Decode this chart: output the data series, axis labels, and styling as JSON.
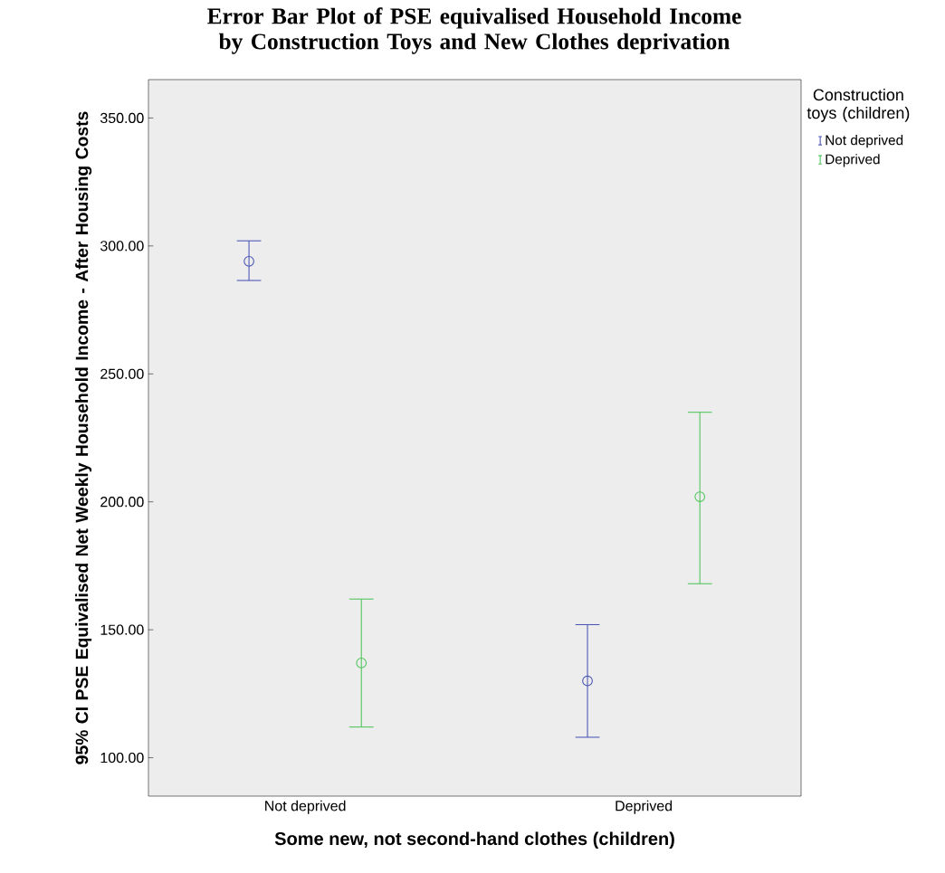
{
  "chart_data": {
    "type": "scatter",
    "title": "Error Bar Plot of PSE equivalised Household Income by Construction Toys and New Clothes deprivation",
    "xlabel": "Some new, not second-hand clothes (children)",
    "ylabel": "95% CI PSE Equivalised Net Weekly Household Income - After Housing Costs",
    "legend_title": "Construction toys (children)",
    "categories": [
      "Not deprived",
      "Deprived"
    ],
    "series": [
      {
        "name": "Not deprived",
        "color": "#4a55b5",
        "values": [
          294,
          130
        ],
        "errors": [
          [
            286.5,
            302
          ],
          [
            108,
            152
          ]
        ]
      },
      {
        "name": "Deprived",
        "color": "#4ec45a",
        "values": [
          137,
          202
        ],
        "errors": [
          [
            112,
            162
          ],
          [
            168,
            235
          ]
        ]
      }
    ],
    "ylim": [
      85,
      365
    ],
    "yticks": [
      {
        "value": 100,
        "label": "100.00"
      },
      {
        "value": 150,
        "label": "150.00"
      },
      {
        "value": 200,
        "label": "200.00"
      },
      {
        "value": 250,
        "label": "250.00"
      },
      {
        "value": 300,
        "label": "300.00"
      },
      {
        "value": 350,
        "label": "350.00"
      }
    ],
    "legend": "right",
    "marker": "circle"
  }
}
